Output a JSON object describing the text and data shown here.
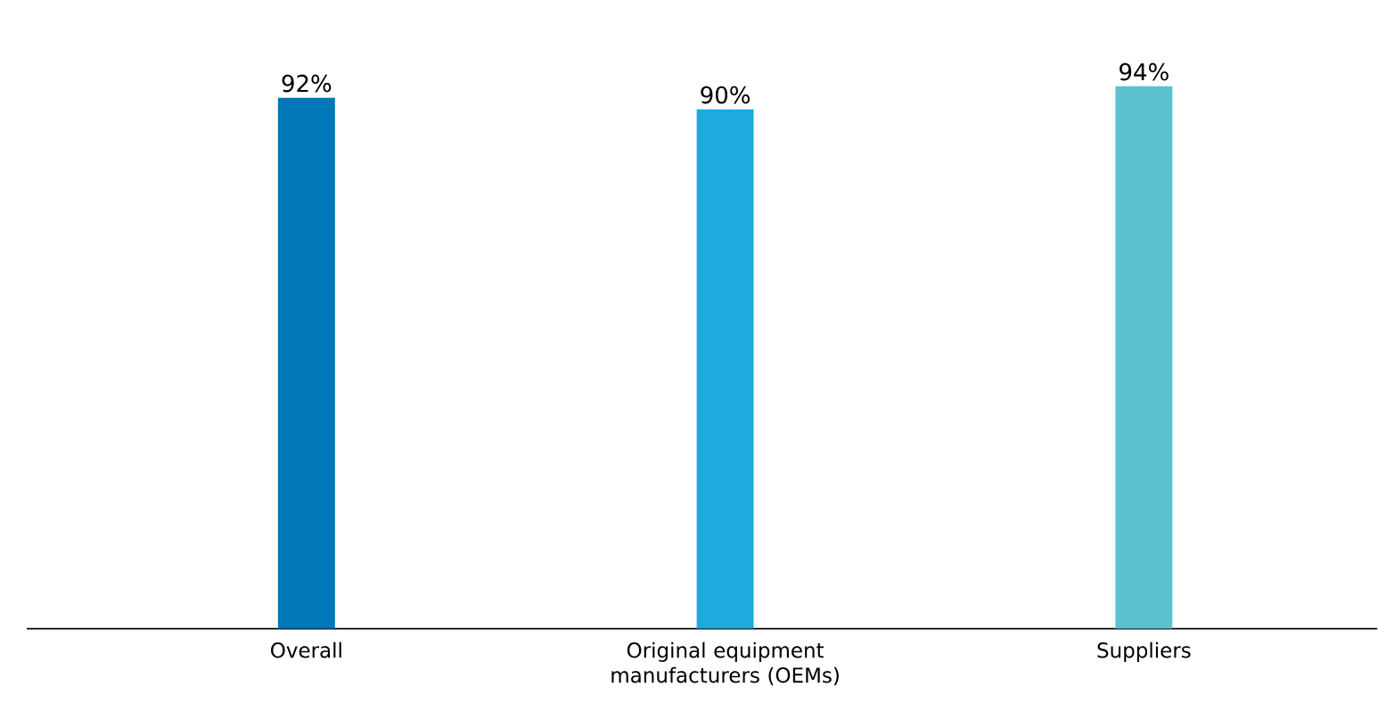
{
  "chart_data": {
    "type": "bar",
    "categories": [
      "Overall",
      "Original equipment manufacturers (OEMs)",
      "Suppliers"
    ],
    "values": [
      92,
      90,
      94
    ],
    "colors": [
      "#0077b6",
      "#1eaadc",
      "#5bc2d0"
    ],
    "value_labels": [
      "92%",
      "90%",
      "94%"
    ],
    "tick_labels": "x"
  }
}
